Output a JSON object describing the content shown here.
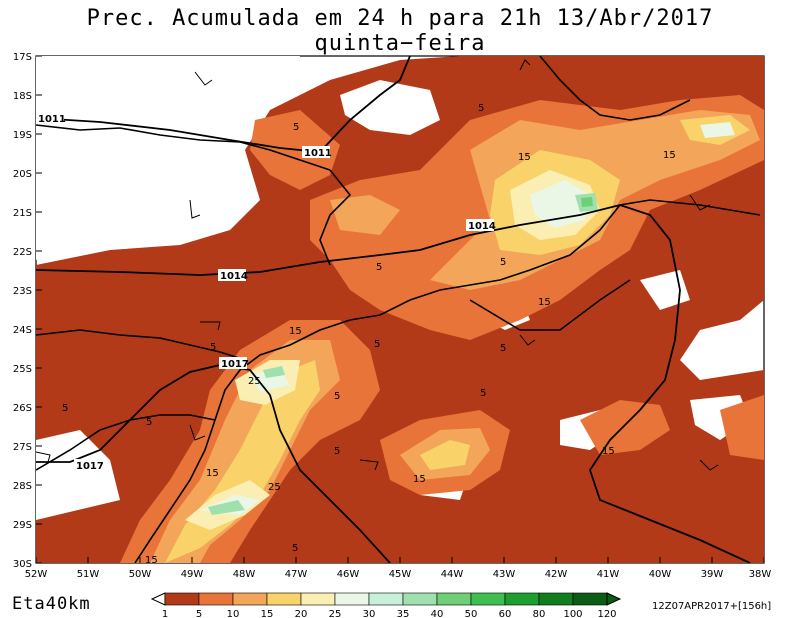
{
  "title": "Prec. Acumulada em 24 h para 21h 13/Abr/2017 quinta−feira",
  "model_label": "Eta40km",
  "run_info": "12Z07APR2017+[156h]",
  "lat_labels": [
    "17S",
    "18S",
    "19S",
    "20S",
    "21S",
    "22S",
    "23S",
    "24S",
    "25S",
    "26S",
    "27S",
    "28S",
    "29S",
    "30S"
  ],
  "lon_labels": [
    "52W",
    "51W",
    "50W",
    "49W",
    "48W",
    "47W",
    "46W",
    "45W",
    "44W",
    "43W",
    "42W",
    "41W",
    "40W",
    "39W",
    "38W"
  ],
  "colorbar": {
    "ticks": [
      "1",
      "5",
      "10",
      "15",
      "20",
      "25",
      "30",
      "35",
      "40",
      "50",
      "60",
      "80",
      "100",
      "120"
    ],
    "colors": [
      "#b33a19",
      "#e8743a",
      "#f3a65a",
      "#f9d36a",
      "#fbeeb2",
      "#eaf7e6",
      "#c8efd8",
      "#a0dfae",
      "#6fcf76",
      "#3fbf4f",
      "#1e9e2e",
      "#117d1e",
      "#0b5c14"
    ]
  },
  "isobars": [
    {
      "label": "1011"
    },
    {
      "label": "1011"
    },
    {
      "label": "1014"
    },
    {
      "label": "1014"
    },
    {
      "label": "1017"
    },
    {
      "label": "1017"
    }
  ],
  "contour_labels": [
    "5",
    "5",
    "5",
    "5",
    "5",
    "5",
    "5",
    "5",
    "5",
    "5",
    "5",
    "5",
    "5",
    "15",
    "15",
    "15",
    "15",
    "15",
    "15",
    "15",
    "15",
    "25",
    "25"
  ]
}
